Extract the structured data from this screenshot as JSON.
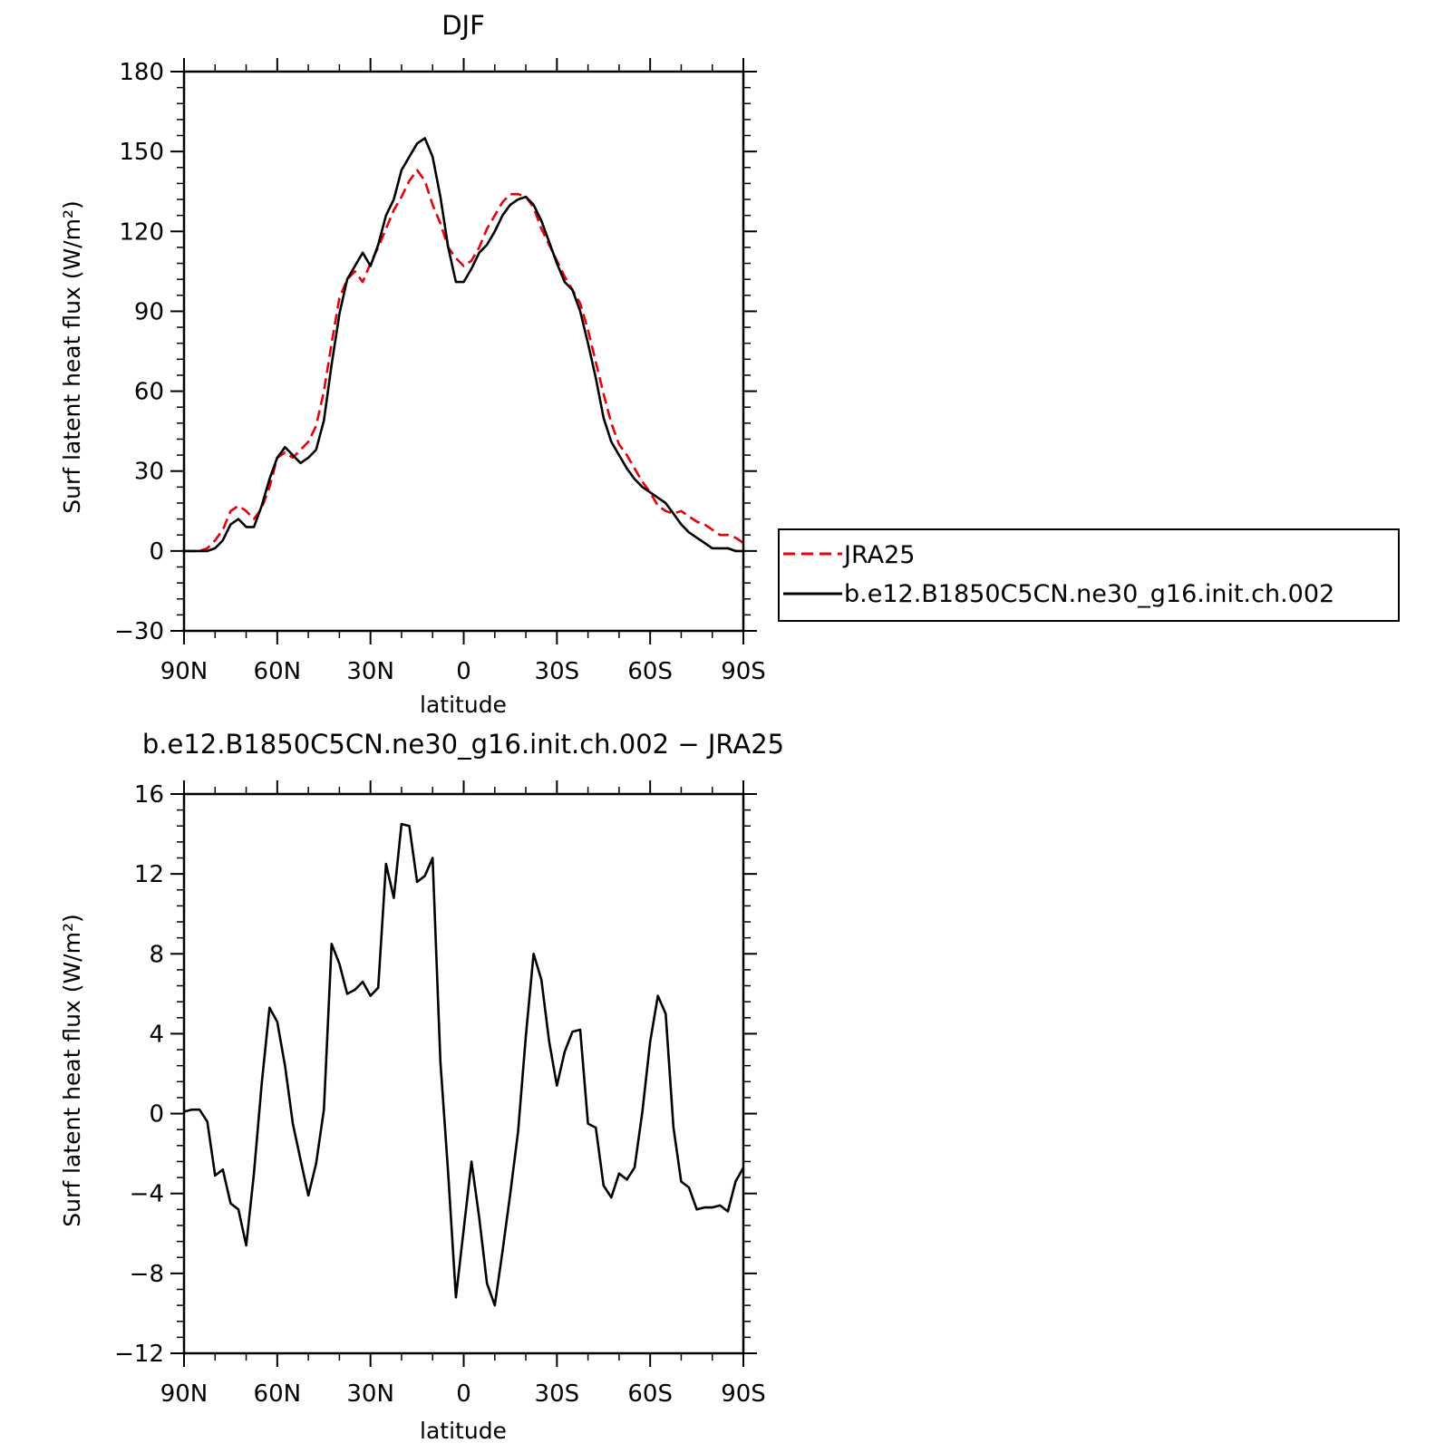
{
  "chart_data": [
    {
      "type": "line",
      "title": "DJF",
      "xlabel": "latitude",
      "ylabel": "Surf latent heat flux (W/m²)",
      "ylim": [
        -30,
        180
      ],
      "yticks": [
        -30,
        0,
        30,
        60,
        90,
        120,
        150,
        180
      ],
      "xlim": [
        90,
        -90
      ],
      "xticks": [
        90,
        60,
        30,
        0,
        -30,
        -60,
        -90
      ],
      "xtick_labels": [
        "90N",
        "60N",
        "30N",
        "0",
        "30S",
        "60S",
        "90S"
      ],
      "grid": false,
      "legend_position": "right",
      "series": [
        {
          "name": "JRA25",
          "color": "#e8000b",
          "style": "dashed",
          "x": [
            90,
            87.5,
            85,
            82.5,
            80,
            77.5,
            75,
            72.5,
            70,
            67.5,
            65,
            62.5,
            60,
            57.5,
            55,
            52.5,
            50,
            47.5,
            45,
            42.5,
            40,
            37.5,
            35,
            32.5,
            30,
            27.5,
            25,
            22.5,
            20,
            17.5,
            15,
            12.5,
            10,
            7.5,
            5,
            2.5,
            0,
            -2.5,
            -5,
            -7.5,
            -10,
            -12.5,
            -15,
            -17.5,
            -20,
            -22.5,
            -25,
            -27.5,
            -30,
            -32.5,
            -35,
            -37.5,
            -40,
            -42.5,
            -45,
            -47.5,
            -50,
            -52.5,
            -55,
            -57.5,
            -60,
            -62.5,
            -65,
            -67.5,
            -70,
            -72.5,
            -75,
            -77.5,
            -80,
            -82.5,
            -85,
            -87.5,
            -90
          ],
          "values": [
            0,
            0,
            0,
            1,
            4,
            8,
            15,
            17,
            15,
            12,
            16,
            24,
            35,
            37,
            35,
            38,
            41,
            47,
            60,
            78,
            95,
            102,
            105,
            101,
            108,
            114,
            121,
            128,
            133,
            139,
            143,
            139,
            130,
            123,
            114,
            110,
            107,
            109,
            114,
            121,
            126,
            131,
            134,
            134,
            133,
            129,
            121,
            115,
            109,
            103,
            98,
            93,
            83,
            71,
            59,
            48,
            40,
            36,
            31,
            26,
            22,
            17,
            15,
            14,
            15,
            13,
            11,
            10,
            8,
            6,
            6,
            5,
            3
          ]
        },
        {
          "name": "b.e12.B1850C5CN.ne30_g16.init.ch.002",
          "color": "#000000",
          "style": "solid",
          "x": [
            90,
            87.5,
            85,
            82.5,
            80,
            77.5,
            75,
            72.5,
            70,
            67.5,
            65,
            62.5,
            60,
            57.5,
            55,
            52.5,
            50,
            47.5,
            45,
            42.5,
            40,
            37.5,
            35,
            32.5,
            30,
            27.5,
            25,
            22.5,
            20,
            17.5,
            15,
            12.5,
            10,
            7.5,
            5,
            2.5,
            0,
            -2.5,
            -5,
            -7.5,
            -10,
            -12.5,
            -15,
            -17.5,
            -20,
            -22.5,
            -25,
            -27.5,
            -30,
            -32.5,
            -35,
            -37.5,
            -40,
            -42.5,
            -45,
            -47.5,
            -50,
            -52.5,
            -55,
            -57.5,
            -60,
            -62.5,
            -65,
            -67.5,
            -70,
            -72.5,
            -75,
            -77.5,
            -80,
            -82.5,
            -85,
            -87.5,
            -90
          ],
          "values": [
            0,
            0,
            0,
            0,
            1,
            4,
            10,
            12,
            9,
            9,
            17,
            27,
            35,
            39,
            36,
            33,
            35,
            38,
            49,
            70,
            89,
            102,
            107,
            112,
            107,
            115,
            126,
            132,
            143,
            148,
            153,
            155,
            148,
            133,
            114,
            101,
            101,
            106,
            112,
            115,
            120,
            126,
            130,
            132,
            133,
            130,
            124,
            116,
            108,
            101,
            98,
            90,
            78,
            65,
            50,
            41,
            36,
            31,
            27,
            24,
            22,
            20,
            18,
            14,
            10,
            7,
            5,
            3,
            1,
            1,
            1,
            0,
            0
          ]
        }
      ]
    },
    {
      "type": "line",
      "title": "b.e12.B1850C5CN.ne30_g16.init.ch.002 − JRA25",
      "xlabel": "latitude",
      "ylabel": "Surf latent heat flux (W/m²)",
      "ylim": [
        -12,
        16
      ],
      "yticks": [
        -12,
        -8,
        -4,
        0,
        4,
        8,
        12,
        16
      ],
      "xlim": [
        90,
        -90
      ],
      "xticks": [
        90,
        60,
        30,
        0,
        -30,
        -60,
        -90
      ],
      "xtick_labels": [
        "90N",
        "60N",
        "30N",
        "0",
        "30S",
        "60S",
        "90S"
      ],
      "grid": false,
      "series": [
        {
          "color": "#000000",
          "style": "solid",
          "x": [
            90,
            87.5,
            85,
            82.5,
            80,
            77.5,
            75,
            72.5,
            70,
            67.5,
            65,
            62.5,
            60,
            57.5,
            55,
            52.5,
            50,
            47.5,
            45,
            42.5,
            40,
            37.5,
            35,
            32.5,
            30,
            27.5,
            25,
            22.5,
            20,
            17.5,
            15,
            12.5,
            10,
            7.5,
            5,
            2.5,
            0,
            -2.5,
            -5,
            -7.5,
            -10,
            -12.5,
            -15,
            -17.5,
            -20,
            -22.5,
            -25,
            -27.5,
            -30,
            -32.5,
            -35,
            -37.5,
            -40,
            -42.5,
            -45,
            -47.5,
            -50,
            -52.5,
            -55,
            -57.5,
            -60,
            -62.5,
            -65,
            -67.5,
            -70,
            -72.5,
            -75,
            -77.5,
            -80,
            -82.5,
            -85,
            -87.5,
            -90
          ],
          "values": [
            0.1,
            0.2,
            0.2,
            -0.4,
            -3.1,
            -2.8,
            -4.5,
            -4.8,
            -6.6,
            -3.0,
            1.5,
            5.3,
            4.6,
            2.4,
            -0.5,
            -2.3,
            -4.1,
            -2.5,
            0.2,
            8.5,
            7.5,
            6.0,
            6.2,
            6.6,
            5.9,
            6.3,
            12.5,
            10.8,
            14.5,
            14.4,
            11.6,
            11.9,
            12.8,
            2.6,
            -3.0,
            -9.2,
            -5.8,
            -2.4,
            -5.2,
            -8.5,
            -9.6,
            -6.9,
            -4.0,
            -0.9,
            3.9,
            8.0,
            6.7,
            3.6,
            1.4,
            3.1,
            4.1,
            4.2,
            -0.5,
            -0.7,
            -3.6,
            -4.2,
            -3.0,
            -3.3,
            -2.7,
            0.1,
            3.6,
            5.9,
            5.0,
            -0.7,
            -3.4,
            -3.7,
            -4.8,
            -4.7,
            -4.7,
            -4.6,
            -4.9,
            -3.4,
            -2.7
          ]
        }
      ]
    }
  ]
}
